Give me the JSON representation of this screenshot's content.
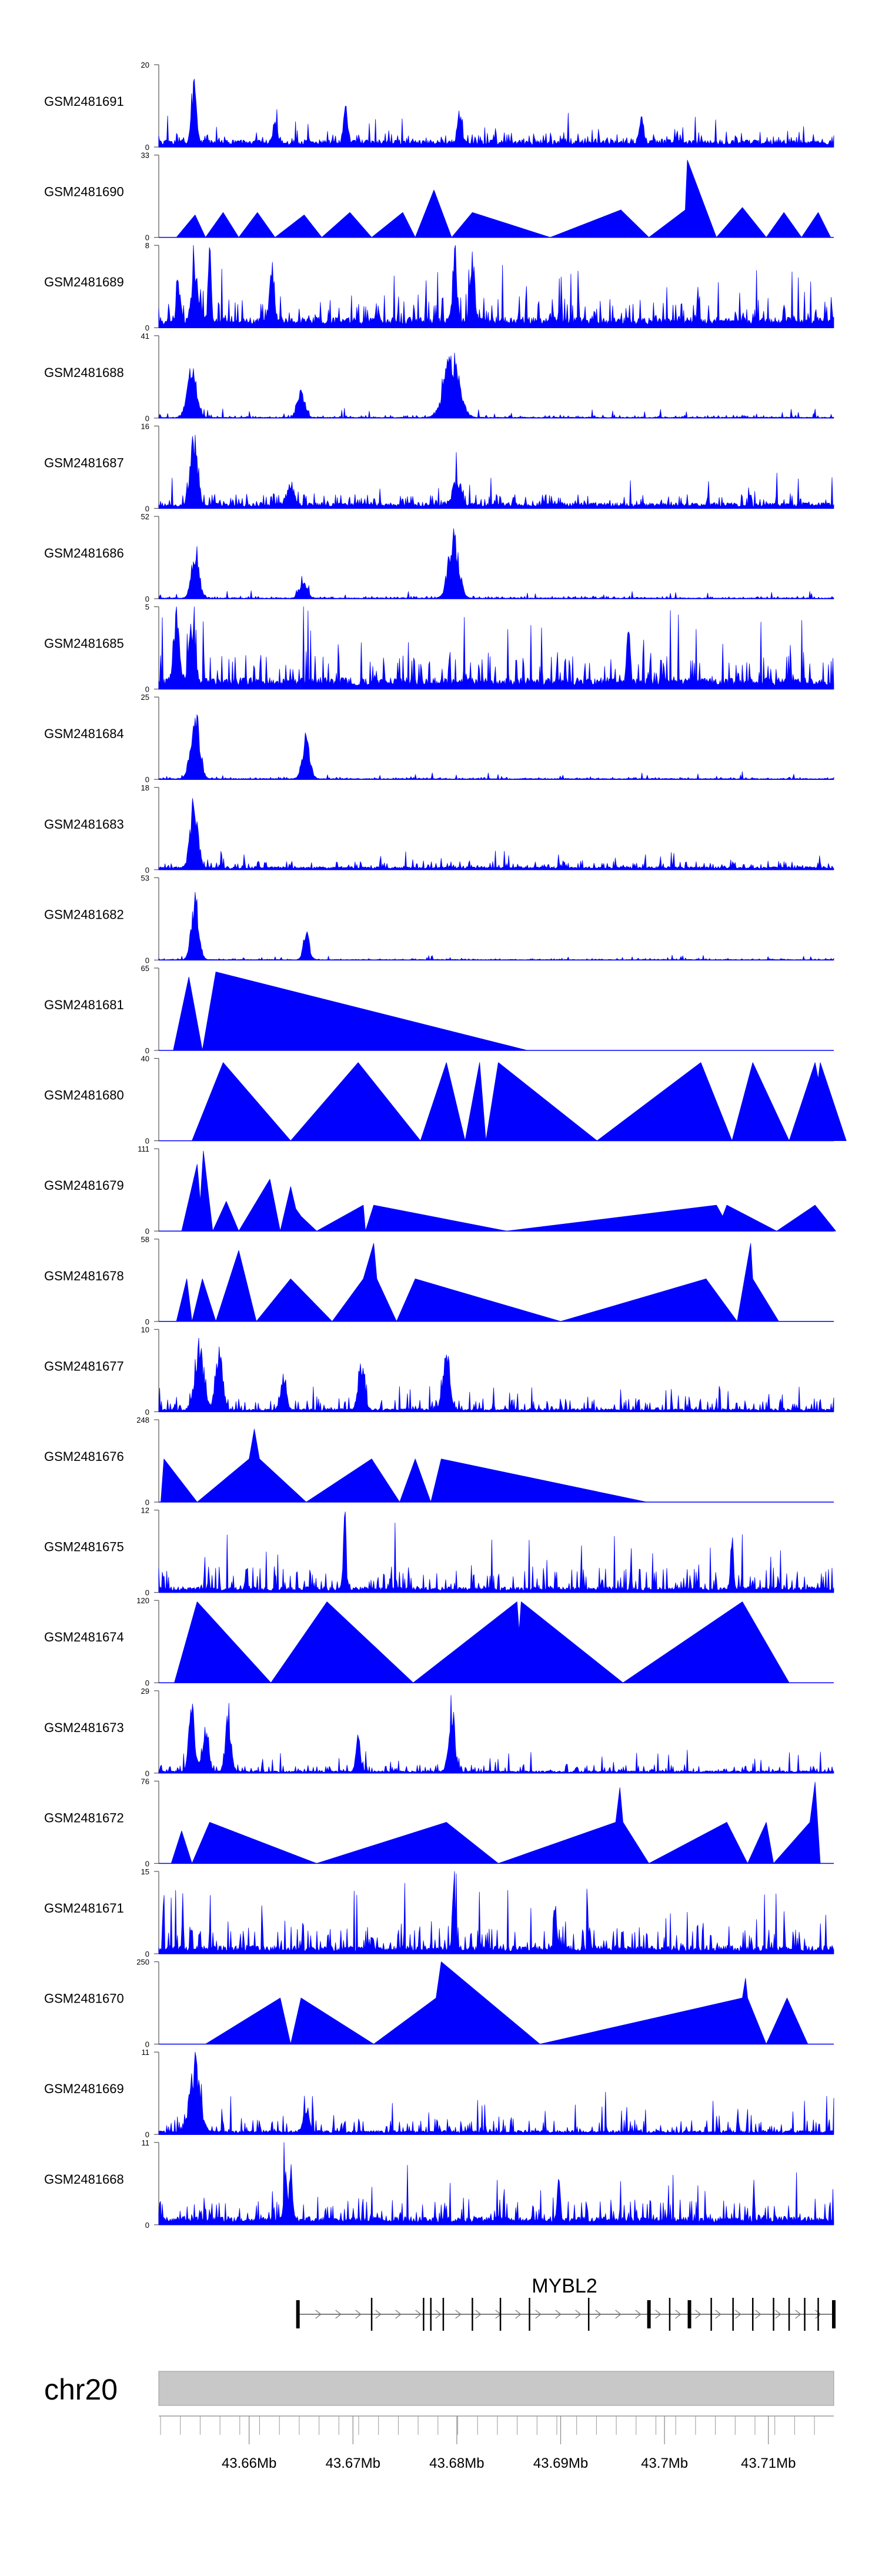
{
  "chart_data": {
    "type": "area",
    "title": "",
    "xlabel": "",
    "ylabel": "",
    "chromosome": "chr20",
    "xlim_mb": [
      43.6513,
      43.7163
    ],
    "x_ticks": [
      "43.66Mb",
      "43.67Mb",
      "43.68Mb",
      "43.69Mb",
      "43.7Mb",
      "43.71Mb"
    ],
    "x_tick_values_mb": [
      43.66,
      43.67,
      43.68,
      43.69,
      43.7,
      43.71
    ],
    "gene": {
      "name": "MYBL2",
      "strand": "+",
      "start_mb": 43.6647,
      "end_mb": 43.7163,
      "exons_mb": [
        43.6647,
        43.6718,
        43.6768,
        43.6775,
        43.6787,
        43.6815,
        43.6842,
        43.687,
        43.6927,
        43.6985,
        43.7005,
        43.7024,
        43.7045,
        43.7066,
        43.7085,
        43.7105,
        43.712,
        43.7135,
        43.7148,
        43.7163
      ]
    },
    "tracks": [
      {
        "name": "GSM2481691",
        "ylim": [
          0,
          20
        ],
        "type": "dense",
        "seed": 11,
        "base": 0.09,
        "noise": 0.12,
        "spikiness": 0.12,
        "peaks": [
          {
            "x": 43.6547,
            "h": 19.5,
            "w": 0.0003
          },
          {
            "x": 43.6625,
            "h": 6,
            "w": 0.0003
          },
          {
            "x": 43.6693,
            "h": 10,
            "w": 0.0003
          },
          {
            "x": 43.6803,
            "h": 9,
            "w": 0.0003
          },
          {
            "x": 43.6978,
            "h": 7,
            "w": 0.0003
          }
        ]
      },
      {
        "name": "GSM2481690",
        "ylim": [
          0,
          33
        ],
        "type": "sparse",
        "seed": 12,
        "points": [
          [
            43.653,
            0
          ],
          [
            43.6548,
            9
          ],
          [
            43.6558,
            0
          ],
          [
            43.6575,
            10
          ],
          [
            43.659,
            0
          ],
          [
            43.6608,
            10
          ],
          [
            43.6625,
            0
          ],
          [
            43.6653,
            9
          ],
          [
            43.667,
            0
          ],
          [
            43.6697,
            10
          ],
          [
            43.6718,
            0
          ],
          [
            43.6748,
            10
          ],
          [
            43.676,
            0
          ],
          [
            43.6778,
            19
          ],
          [
            43.6795,
            0
          ],
          [
            43.6815,
            10
          ],
          [
            43.689,
            0
          ],
          [
            43.6958,
            11
          ],
          [
            43.6985,
            0
          ],
          [
            43.702,
            11
          ],
          [
            43.7022,
            31
          ],
          [
            43.705,
            0
          ],
          [
            43.7075,
            12
          ],
          [
            43.7098,
            0
          ],
          [
            43.7115,
            10
          ],
          [
            43.7132,
            0
          ],
          [
            43.7148,
            10
          ],
          [
            43.716,
            0
          ]
        ]
      },
      {
        "name": "GSM2481689",
        "ylim": [
          0,
          8
        ],
        "type": "dense",
        "seed": 13,
        "base": 0.13,
        "noise": 0.28,
        "spikiness": 0.22,
        "peaks": [
          {
            "x": 43.6532,
            "h": 4.5,
            "w": 0.0003
          },
          {
            "x": 43.6548,
            "h": 6.5,
            "w": 0.0004
          },
          {
            "x": 43.6562,
            "h": 7.8,
            "w": 0.0002
          },
          {
            "x": 43.6622,
            "h": 6.5,
            "w": 0.0003
          },
          {
            "x": 43.6798,
            "h": 7,
            "w": 0.0003
          },
          {
            "x": 43.6815,
            "h": 7.2,
            "w": 0.0003
          }
        ]
      },
      {
        "name": "GSM2481688",
        "ylim": [
          0,
          41
        ],
        "type": "dense",
        "seed": 14,
        "base": 0.012,
        "noise": 0.03,
        "spikiness": 0.04,
        "peaks": [
          {
            "x": 43.6545,
            "h": 30,
            "w": 0.0006
          },
          {
            "x": 43.665,
            "h": 15,
            "w": 0.0005
          },
          {
            "x": 43.6795,
            "h": 35,
            "w": 0.001
          }
        ]
      },
      {
        "name": "GSM2481687",
        "ylim": [
          0,
          16
        ],
        "type": "dense",
        "seed": 15,
        "base": 0.07,
        "noise": 0.12,
        "spikiness": 0.12,
        "peaks": [
          {
            "x": 43.6547,
            "h": 15,
            "w": 0.0005
          },
          {
            "x": 43.664,
            "h": 5,
            "w": 0.0005
          },
          {
            "x": 43.68,
            "h": 6,
            "w": 0.0005
          }
        ]
      },
      {
        "name": "GSM2481686",
        "ylim": [
          0,
          52
        ],
        "type": "dense",
        "seed": 16,
        "base": 0.012,
        "noise": 0.025,
        "spikiness": 0.04,
        "peaks": [
          {
            "x": 43.6548,
            "h": 37,
            "w": 0.0005
          },
          {
            "x": 43.6652,
            "h": 14,
            "w": 0.0005
          },
          {
            "x": 43.6797,
            "h": 45,
            "w": 0.0007
          }
        ]
      },
      {
        "name": "GSM2481685",
        "ylim": [
          0,
          5
        ],
        "type": "dense",
        "seed": 17,
        "base": 0.14,
        "noise": 0.35,
        "spikiness": 0.32,
        "peaks": [
          {
            "x": 43.653,
            "h": 4.6,
            "w": 0.0004
          },
          {
            "x": 43.6545,
            "h": 4.5,
            "w": 0.0004
          },
          {
            "x": 43.6965,
            "h": 4.2,
            "w": 0.0002
          }
        ]
      },
      {
        "name": "GSM2481684",
        "ylim": [
          0,
          25
        ],
        "type": "dense",
        "seed": 18,
        "base": 0.012,
        "noise": 0.02,
        "spikiness": 0.03,
        "peaks": [
          {
            "x": 43.6548,
            "h": 23,
            "w": 0.0006
          },
          {
            "x": 43.6655,
            "h": 15,
            "w": 0.0005
          }
        ]
      },
      {
        "name": "GSM2481683",
        "ylim": [
          0,
          18
        ],
        "type": "dense",
        "seed": 19,
        "base": 0.04,
        "noise": 0.08,
        "spikiness": 0.08,
        "peaks": [
          {
            "x": 43.6547,
            "h": 17,
            "w": 0.0005
          }
        ]
      },
      {
        "name": "GSM2481682",
        "ylim": [
          0,
          53
        ],
        "type": "dense",
        "seed": 20,
        "base": 0.008,
        "noise": 0.015,
        "spikiness": 0.02,
        "peaks": [
          {
            "x": 43.6548,
            "h": 45,
            "w": 0.0005
          },
          {
            "x": 43.6655,
            "h": 20,
            "w": 0.0004
          }
        ]
      },
      {
        "name": "GSM2481681",
        "ylim": [
          0,
          65
        ],
        "type": "sparse",
        "seed": 21,
        "points": [
          [
            43.6527,
            0
          ],
          [
            43.6542,
            58
          ],
          [
            43.6555,
            0
          ],
          [
            43.6568,
            62
          ],
          [
            43.6868,
            0
          ]
        ]
      },
      {
        "name": "GSM2481680",
        "ylim": [
          0,
          40
        ],
        "type": "sparse",
        "seed": 22,
        "points": [
          [
            43.6545,
            0
          ],
          [
            43.6575,
            38
          ],
          [
            43.664,
            0
          ],
          [
            43.6705,
            38
          ],
          [
            43.6765,
            0
          ],
          [
            43.679,
            38
          ],
          [
            43.6808,
            0
          ],
          [
            43.6822,
            38
          ],
          [
            43.6828,
            0
          ],
          [
            43.684,
            38
          ],
          [
            43.6935,
            0
          ],
          [
            43.7035,
            38
          ],
          [
            43.7065,
            0
          ],
          [
            43.7085,
            38
          ],
          [
            43.712,
            0
          ],
          [
            43.7145,
            38
          ],
          [
            43.7148,
            30
          ],
          [
            43.715,
            38
          ],
          [
            43.7175,
            0
          ]
        ]
      },
      {
        "name": "GSM2481679",
        "ylim": [
          0,
          111
        ],
        "type": "sparse",
        "seed": 23,
        "points": [
          [
            43.6535,
            0
          ],
          [
            43.655,
            90
          ],
          [
            43.6553,
            40
          ],
          [
            43.6556,
            108
          ],
          [
            43.6565,
            0
          ],
          [
            43.6578,
            40
          ],
          [
            43.659,
            0
          ],
          [
            43.662,
            70
          ],
          [
            43.663,
            0
          ],
          [
            43.664,
            60
          ],
          [
            43.6645,
            30
          ],
          [
            43.665,
            20
          ],
          [
            43.6665,
            0
          ],
          [
            43.671,
            35
          ],
          [
            43.6712,
            0
          ],
          [
            43.672,
            35
          ],
          [
            43.6848,
            0
          ],
          [
            43.705,
            35
          ],
          [
            43.7056,
            20
          ],
          [
            43.706,
            35
          ],
          [
            43.7108,
            0
          ],
          [
            43.7145,
            35
          ],
          [
            43.7165,
            0
          ]
        ]
      },
      {
        "name": "GSM2481678",
        "ylim": [
          0,
          58
        ],
        "type": "sparse",
        "seed": 24,
        "points": [
          [
            43.653,
            0
          ],
          [
            43.654,
            30
          ],
          [
            43.6545,
            0
          ],
          [
            43.6555,
            30
          ],
          [
            43.6568,
            0
          ],
          [
            43.659,
            50
          ],
          [
            43.6607,
            0
          ],
          [
            43.664,
            30
          ],
          [
            43.668,
            0
          ],
          [
            43.671,
            30
          ],
          [
            43.672,
            55
          ],
          [
            43.6723,
            30
          ],
          [
            43.6742,
            0
          ],
          [
            43.676,
            30
          ],
          [
            43.69,
            0
          ],
          [
            43.704,
            30
          ],
          [
            43.707,
            0
          ],
          [
            43.7083,
            55
          ],
          [
            43.7085,
            30
          ],
          [
            43.711,
            0
          ]
        ]
      },
      {
        "name": "GSM2481677",
        "ylim": [
          0,
          10
        ],
        "type": "dense",
        "seed": 25,
        "base": 0.04,
        "noise": 0.14,
        "spikiness": 0.1,
        "peaks": [
          {
            "x": 43.6552,
            "h": 9,
            "w": 0.0006
          },
          {
            "x": 43.6571,
            "h": 8,
            "w": 0.0005
          },
          {
            "x": 43.6633,
            "h": 5,
            "w": 0.0004
          },
          {
            "x": 43.6708,
            "h": 7,
            "w": 0.0004
          },
          {
            "x": 43.679,
            "h": 7.5,
            "w": 0.0005
          }
        ]
      },
      {
        "name": "GSM2481676",
        "ylim": [
          0,
          248
        ],
        "type": "sparse",
        "seed": 26,
        "points": [
          [
            43.6515,
            0
          ],
          [
            43.6518,
            130
          ],
          [
            43.655,
            0
          ],
          [
            43.66,
            130
          ],
          [
            43.6605,
            220
          ],
          [
            43.661,
            130
          ],
          [
            43.6655,
            0
          ],
          [
            43.6718,
            130
          ],
          [
            43.6745,
            0
          ],
          [
            43.676,
            130
          ],
          [
            43.6775,
            0
          ],
          [
            43.6785,
            130
          ],
          [
            43.6983,
            0
          ]
        ]
      },
      {
        "name": "GSM2481675",
        "ylim": [
          0,
          12
        ],
        "type": "dense",
        "seed": 27,
        "base": 0.07,
        "noise": 0.26,
        "spikiness": 0.26,
        "peaks": [
          {
            "x": 43.6692,
            "h": 11,
            "w": 0.0002
          },
          {
            "x": 43.7065,
            "h": 8,
            "w": 0.0002
          }
        ]
      },
      {
        "name": "GSM2481674",
        "ylim": [
          0,
          120
        ],
        "type": "sparse",
        "seed": 28,
        "points": [
          [
            43.6528,
            0
          ],
          [
            43.655,
            118
          ],
          [
            43.6621,
            0
          ],
          [
            43.6675,
            118
          ],
          [
            43.6758,
            0
          ],
          [
            43.6858,
            118
          ],
          [
            43.686,
            75
          ],
          [
            43.6862,
            118
          ],
          [
            43.696,
            0
          ],
          [
            43.7075,
            118
          ],
          [
            43.712,
            0
          ]
        ]
      },
      {
        "name": "GSM2481673",
        "ylim": [
          0,
          29
        ],
        "type": "dense",
        "seed": 29,
        "base": 0.03,
        "noise": 0.08,
        "spikiness": 0.1,
        "peaks": [
          {
            "x": 43.6545,
            "h": 27,
            "w": 0.0004
          },
          {
            "x": 43.6558,
            "h": 20,
            "w": 0.0004
          },
          {
            "x": 43.658,
            "h": 23,
            "w": 0.0004
          },
          {
            "x": 43.6705,
            "h": 14,
            "w": 0.0003
          },
          {
            "x": 43.6795,
            "h": 28,
            "w": 0.0004
          }
        ]
      },
      {
        "name": "GSM2481672",
        "ylim": [
          0,
          76
        ],
        "type": "sparse",
        "seed": 30,
        "points": [
          [
            43.6525,
            0
          ],
          [
            43.6535,
            30
          ],
          [
            43.6545,
            0
          ],
          [
            43.6562,
            38
          ],
          [
            43.6665,
            0
          ],
          [
            43.679,
            38
          ],
          [
            43.684,
            0
          ],
          [
            43.6953,
            38
          ],
          [
            43.6957,
            70
          ],
          [
            43.696,
            38
          ],
          [
            43.6985,
            0
          ],
          [
            43.706,
            38
          ],
          [
            43.708,
            0
          ],
          [
            43.7098,
            38
          ],
          [
            43.7105,
            0
          ],
          [
            43.714,
            38
          ],
          [
            43.7145,
            75
          ],
          [
            43.715,
            0
          ]
        ]
      },
      {
        "name": "GSM2481671",
        "ylim": [
          0,
          15
        ],
        "type": "dense",
        "seed": 31,
        "base": 0.1,
        "noise": 0.28,
        "spikiness": 0.28,
        "peaks": [
          {
            "x": 43.6797,
            "h": 14,
            "w": 0.0002
          },
          {
            "x": 43.6895,
            "h": 9,
            "w": 0.0002
          }
        ]
      },
      {
        "name": "GSM2481670",
        "ylim": [
          0,
          250
        ],
        "type": "sparse",
        "seed": 32,
        "points": [
          [
            43.6558,
            0
          ],
          [
            43.663,
            140
          ],
          [
            43.664,
            0
          ],
          [
            43.665,
            140
          ],
          [
            43.672,
            0
          ],
          [
            43.678,
            140
          ],
          [
            43.6785,
            250
          ],
          [
            43.688,
            0
          ],
          [
            43.7075,
            140
          ],
          [
            43.7078,
            200
          ],
          [
            43.708,
            140
          ],
          [
            43.7098,
            0
          ],
          [
            43.7118,
            140
          ],
          [
            43.7138,
            0
          ]
        ]
      },
      {
        "name": "GSM2481669",
        "ylim": [
          0,
          11
        ],
        "type": "dense",
        "seed": 33,
        "base": 0.05,
        "noise": 0.15,
        "spikiness": 0.16,
        "peaks": [
          {
            "x": 43.6548,
            "h": 10.5,
            "w": 0.0007
          },
          {
            "x": 43.6655,
            "h": 4,
            "w": 0.0004
          }
        ]
      },
      {
        "name": "GSM2481668",
        "ylim": [
          0,
          11
        ],
        "type": "dense",
        "seed": 34,
        "base": 0.1,
        "noise": 0.24,
        "spikiness": 0.24,
        "peaks": [
          {
            "x": 43.6635,
            "h": 10.6,
            "w": 0.0002
          },
          {
            "x": 43.664,
            "h": 8,
            "w": 0.0002
          },
          {
            "x": 43.6898,
            "h": 8,
            "w": 0.0002
          }
        ]
      }
    ]
  }
}
